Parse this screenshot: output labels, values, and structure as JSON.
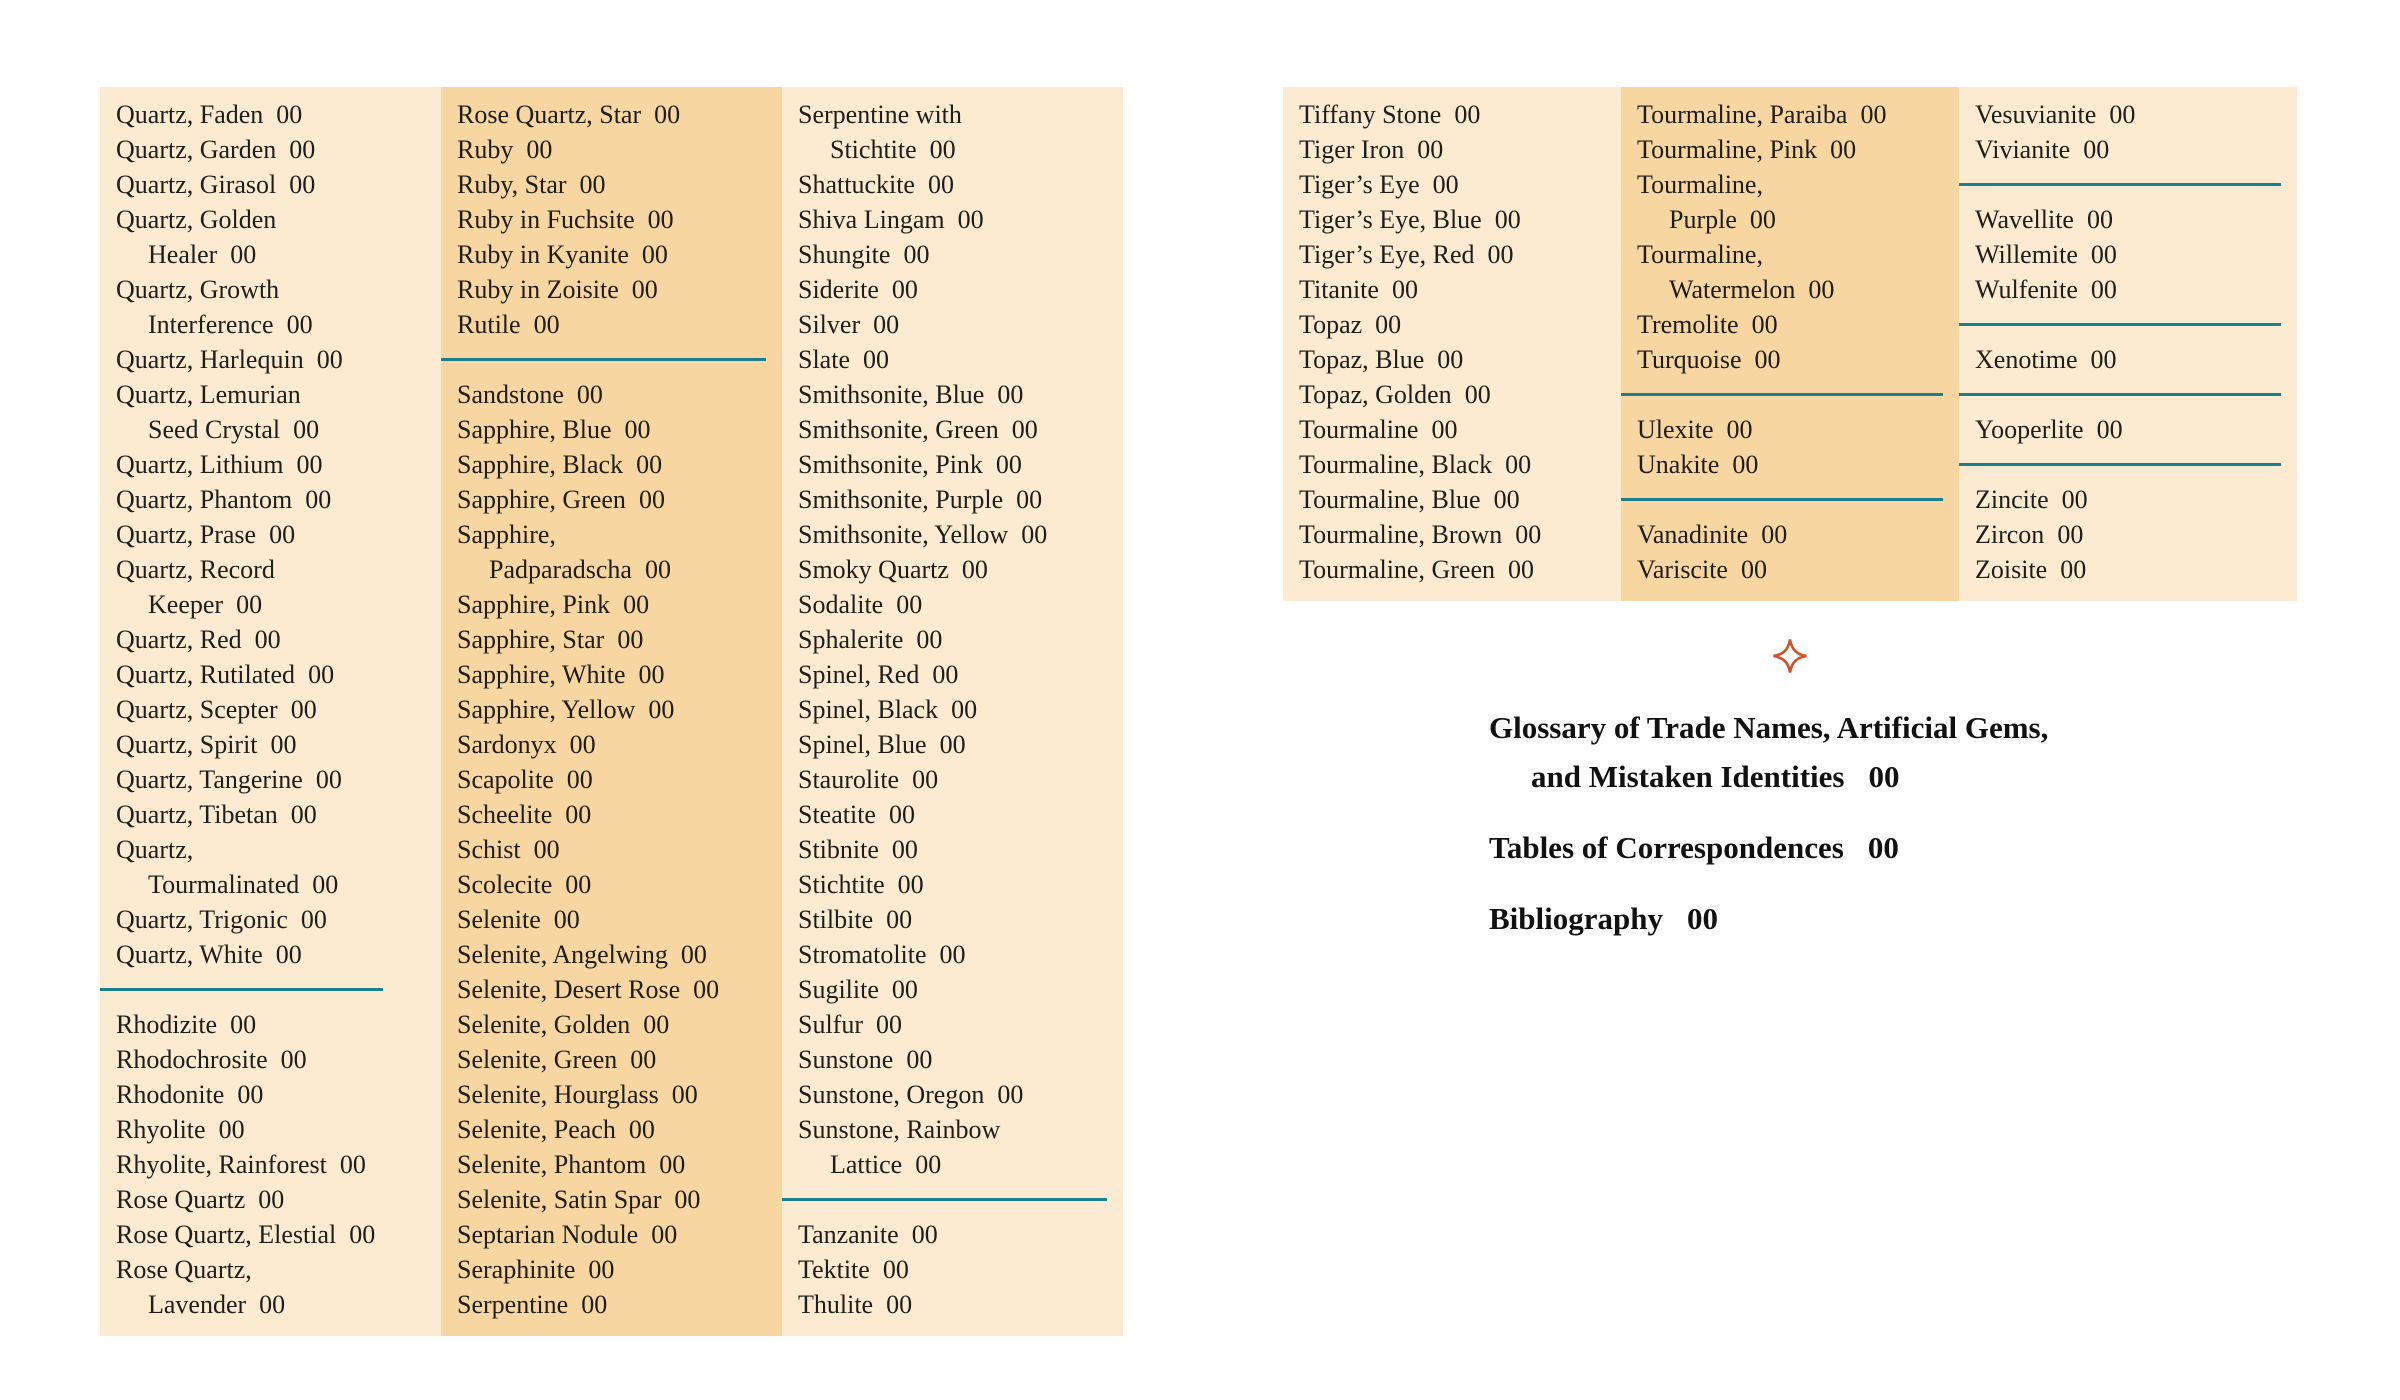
{
  "palette": {
    "light_column": "#fcebd0",
    "dark_column": "#f7d6a2",
    "divider_teal": "#187f8e",
    "text": "#1d1d1b",
    "ornament_orange": "#d4502a"
  },
  "page_number_placeholder": "00",
  "left_page": {
    "columns": [
      {
        "shade": "light",
        "items": [
          {
            "lines": [
              "Quartz, Faden"
            ],
            "page": "00"
          },
          {
            "lines": [
              "Quartz, Garden"
            ],
            "page": "00"
          },
          {
            "lines": [
              "Quartz, Girasol"
            ],
            "page": "00"
          },
          {
            "lines": [
              "Quartz, Golden",
              "Healer"
            ],
            "page": "00"
          },
          {
            "lines": [
              "Quartz, Growth",
              "Interference"
            ],
            "page": "00"
          },
          {
            "lines": [
              "Quartz, Harlequin"
            ],
            "page": "00"
          },
          {
            "lines": [
              "Quartz, Lemurian",
              "Seed Crystal"
            ],
            "page": "00"
          },
          {
            "lines": [
              "Quartz, Lithium"
            ],
            "page": "00"
          },
          {
            "lines": [
              "Quartz, Phantom"
            ],
            "page": "00"
          },
          {
            "lines": [
              "Quartz, Prase"
            ],
            "page": "00"
          },
          {
            "lines": [
              "Quartz, Record",
              "Keeper"
            ],
            "page": "00"
          },
          {
            "lines": [
              "Quartz, Red"
            ],
            "page": "00"
          },
          {
            "lines": [
              "Quartz, Rutilated"
            ],
            "page": "00"
          },
          {
            "lines": [
              "Quartz, Scepter"
            ],
            "page": "00"
          },
          {
            "lines": [
              "Quartz, Spirit"
            ],
            "page": "00"
          },
          {
            "lines": [
              "Quartz, Tangerine"
            ],
            "page": "00"
          },
          {
            "lines": [
              "Quartz, Tibetan"
            ],
            "page": "00"
          },
          {
            "lines": [
              "Quartz,",
              "Tourmalinated"
            ],
            "page": "00"
          },
          {
            "lines": [
              "Quartz, Trigonic"
            ],
            "page": "00"
          },
          {
            "lines": [
              "Quartz, White"
            ],
            "page": "00"
          },
          {
            "divider": true,
            "short": true
          },
          {
            "lines": [
              "Rhodizite"
            ],
            "page": "00"
          },
          {
            "lines": [
              "Rhodochrosite"
            ],
            "page": "00"
          },
          {
            "lines": [
              "Rhodonite"
            ],
            "page": "00"
          },
          {
            "lines": [
              "Rhyolite"
            ],
            "page": "00"
          },
          {
            "lines": [
              "Rhyolite, Rainforest"
            ],
            "page": "00"
          },
          {
            "lines": [
              "Rose Quartz"
            ],
            "page": "00"
          },
          {
            "lines": [
              "Rose Quartz, Elestial"
            ],
            "page": "00"
          },
          {
            "lines": [
              "Rose Quartz,",
              "Lavender"
            ],
            "page": "00"
          }
        ]
      },
      {
        "shade": "dark",
        "items": [
          {
            "lines": [
              "Rose Quartz, Star"
            ],
            "page": "00"
          },
          {
            "lines": [
              "Ruby"
            ],
            "page": "00"
          },
          {
            "lines": [
              "Ruby, Star"
            ],
            "page": "00"
          },
          {
            "lines": [
              "Ruby in Fuchsite"
            ],
            "page": "00"
          },
          {
            "lines": [
              "Ruby in Kyanite"
            ],
            "page": "00"
          },
          {
            "lines": [
              "Ruby in Zoisite"
            ],
            "page": "00"
          },
          {
            "lines": [
              "Rutile"
            ],
            "page": "00"
          },
          {
            "divider": true
          },
          {
            "lines": [
              "Sandstone"
            ],
            "page": "00"
          },
          {
            "lines": [
              "Sapphire, Blue"
            ],
            "page": "00"
          },
          {
            "lines": [
              "Sapphire, Black"
            ],
            "page": "00"
          },
          {
            "lines": [
              "Sapphire, Green"
            ],
            "page": "00"
          },
          {
            "lines": [
              "Sapphire,",
              "Padparadscha"
            ],
            "page": "00"
          },
          {
            "lines": [
              "Sapphire, Pink"
            ],
            "page": "00"
          },
          {
            "lines": [
              "Sapphire, Star"
            ],
            "page": "00"
          },
          {
            "lines": [
              "Sapphire, White"
            ],
            "page": "00"
          },
          {
            "lines": [
              "Sapphire, Yellow"
            ],
            "page": "00"
          },
          {
            "lines": [
              "Sardonyx"
            ],
            "page": "00"
          },
          {
            "lines": [
              "Scapolite"
            ],
            "page": "00"
          },
          {
            "lines": [
              "Scheelite"
            ],
            "page": "00"
          },
          {
            "lines": [
              "Schist"
            ],
            "page": "00"
          },
          {
            "lines": [
              "Scolecite"
            ],
            "page": "00"
          },
          {
            "lines": [
              "Selenite"
            ],
            "page": "00"
          },
          {
            "lines": [
              "Selenite, Angelwing"
            ],
            "page": "00"
          },
          {
            "lines": [
              "Selenite, Desert Rose"
            ],
            "page": "00"
          },
          {
            "lines": [
              "Selenite, Golden"
            ],
            "page": "00"
          },
          {
            "lines": [
              "Selenite, Green"
            ],
            "page": "00"
          },
          {
            "lines": [
              "Selenite, Hourglass"
            ],
            "page": "00"
          },
          {
            "lines": [
              "Selenite, Peach"
            ],
            "page": "00"
          },
          {
            "lines": [
              "Selenite, Phantom"
            ],
            "page": "00"
          },
          {
            "lines": [
              "Selenite, Satin Spar"
            ],
            "page": "00"
          },
          {
            "lines": [
              "Septarian Nodule"
            ],
            "page": "00"
          },
          {
            "lines": [
              "Seraphinite"
            ],
            "page": "00"
          },
          {
            "lines": [
              "Serpentine"
            ],
            "page": "00"
          }
        ]
      },
      {
        "shade": "light",
        "items": [
          {
            "lines": [
              "Serpentine with",
              "Stichtite"
            ],
            "page": "00"
          },
          {
            "lines": [
              "Shattuckite"
            ],
            "page": "00"
          },
          {
            "lines": [
              "Shiva Lingam"
            ],
            "page": "00"
          },
          {
            "lines": [
              "Shungite"
            ],
            "page": "00"
          },
          {
            "lines": [
              "Siderite"
            ],
            "page": "00"
          },
          {
            "lines": [
              "Silver"
            ],
            "page": "00"
          },
          {
            "lines": [
              "Slate"
            ],
            "page": "00"
          },
          {
            "lines": [
              "Smithsonite, Blue"
            ],
            "page": "00"
          },
          {
            "lines": [
              "Smithsonite, Green"
            ],
            "page": "00"
          },
          {
            "lines": [
              "Smithsonite, Pink"
            ],
            "page": "00"
          },
          {
            "lines": [
              "Smithsonite, Purple"
            ],
            "page": "00"
          },
          {
            "lines": [
              "Smithsonite, Yellow"
            ],
            "page": "00"
          },
          {
            "lines": [
              "Smoky Quartz"
            ],
            "page": "00"
          },
          {
            "lines": [
              "Sodalite"
            ],
            "page": "00"
          },
          {
            "lines": [
              "Sphalerite"
            ],
            "page": "00"
          },
          {
            "lines": [
              "Spinel, Red"
            ],
            "page": "00"
          },
          {
            "lines": [
              "Spinel, Black"
            ],
            "page": "00"
          },
          {
            "lines": [
              "Spinel, Blue"
            ],
            "page": "00"
          },
          {
            "lines": [
              "Staurolite"
            ],
            "page": "00"
          },
          {
            "lines": [
              "Steatite"
            ],
            "page": "00"
          },
          {
            "lines": [
              "Stibnite"
            ],
            "page": "00"
          },
          {
            "lines": [
              "Stichtite"
            ],
            "page": "00"
          },
          {
            "lines": [
              "Stilbite"
            ],
            "page": "00"
          },
          {
            "lines": [
              "Stromatolite"
            ],
            "page": "00"
          },
          {
            "lines": [
              "Sugilite"
            ],
            "page": "00"
          },
          {
            "lines": [
              "Sulfur"
            ],
            "page": "00"
          },
          {
            "lines": [
              "Sunstone"
            ],
            "page": "00"
          },
          {
            "lines": [
              "Sunstone, Oregon"
            ],
            "page": "00"
          },
          {
            "lines": [
              "Sunstone, Rainbow",
              "Lattice"
            ],
            "page": "00"
          },
          {
            "divider": true
          },
          {
            "lines": [
              "Tanzanite"
            ],
            "page": "00"
          },
          {
            "lines": [
              "Tektite"
            ],
            "page": "00"
          },
          {
            "lines": [
              "Thulite"
            ],
            "page": "00"
          }
        ]
      }
    ]
  },
  "right_page": {
    "columns": [
      {
        "shade": "light",
        "items": [
          {
            "lines": [
              "Tiffany Stone"
            ],
            "page": "00"
          },
          {
            "lines": [
              "Tiger Iron"
            ],
            "page": "00"
          },
          {
            "lines": [
              "Tiger’s Eye"
            ],
            "page": "00"
          },
          {
            "lines": [
              "Tiger’s Eye, Blue"
            ],
            "page": "00"
          },
          {
            "lines": [
              "Tiger’s Eye, Red"
            ],
            "page": "00"
          },
          {
            "lines": [
              "Titanite"
            ],
            "page": "00"
          },
          {
            "lines": [
              "Topaz"
            ],
            "page": "00"
          },
          {
            "lines": [
              "Topaz, Blue"
            ],
            "page": "00"
          },
          {
            "lines": [
              "Topaz, Golden"
            ],
            "page": "00"
          },
          {
            "lines": [
              "Tourmaline"
            ],
            "page": "00"
          },
          {
            "lines": [
              "Tourmaline, Black"
            ],
            "page": "00"
          },
          {
            "lines": [
              "Tourmaline, Blue"
            ],
            "page": "00"
          },
          {
            "lines": [
              "Tourmaline, Brown"
            ],
            "page": "00"
          },
          {
            "lines": [
              "Tourmaline, Green"
            ],
            "page": "00"
          }
        ]
      },
      {
        "shade": "dark",
        "items": [
          {
            "lines": [
              "Tourmaline, Paraiba"
            ],
            "page": "00"
          },
          {
            "lines": [
              "Tourmaline, Pink"
            ],
            "page": "00"
          },
          {
            "lines": [
              "Tourmaline,",
              "Purple"
            ],
            "page": "00"
          },
          {
            "lines": [
              "Tourmaline,",
              "Watermelon"
            ],
            "page": "00"
          },
          {
            "lines": [
              "Tremolite"
            ],
            "page": "00"
          },
          {
            "lines": [
              "Turquoise"
            ],
            "page": "00"
          },
          {
            "divider": true
          },
          {
            "lines": [
              "Ulexite"
            ],
            "page": "00"
          },
          {
            "lines": [
              "Unakite"
            ],
            "page": "00"
          },
          {
            "divider": true
          },
          {
            "lines": [
              "Vanadinite"
            ],
            "page": "00"
          },
          {
            "lines": [
              "Variscite"
            ],
            "page": "00"
          }
        ]
      },
      {
        "shade": "light",
        "items": [
          {
            "lines": [
              "Vesuvianite"
            ],
            "page": "00"
          },
          {
            "lines": [
              "Vivianite"
            ],
            "page": "00"
          },
          {
            "divider": true
          },
          {
            "lines": [
              "Wavellite"
            ],
            "page": "00"
          },
          {
            "lines": [
              "Willemite"
            ],
            "page": "00"
          },
          {
            "lines": [
              "Wulfenite"
            ],
            "page": "00"
          },
          {
            "divider": true
          },
          {
            "lines": [
              "Xenotime"
            ],
            "page": "00"
          },
          {
            "divider": true
          },
          {
            "lines": [
              "Yooperlite"
            ],
            "page": "00"
          },
          {
            "divider": true
          },
          {
            "lines": [
              "Zincite"
            ],
            "page": "00"
          },
          {
            "lines": [
              "Zircon"
            ],
            "page": "00"
          },
          {
            "lines": [
              "Zoisite"
            ],
            "page": "00"
          }
        ]
      }
    ]
  },
  "back_matter": {
    "ornament": "four-pointed-sparkle",
    "entries": [
      {
        "lines": [
          "Glossary of Trade Names, Artificial Gems,",
          "and Mistaken Identities"
        ],
        "page": "00"
      },
      {
        "lines": [
          "Tables of Correspondences"
        ],
        "page": "00"
      },
      {
        "lines": [
          "Bibliography"
        ],
        "page": "00"
      }
    ]
  }
}
